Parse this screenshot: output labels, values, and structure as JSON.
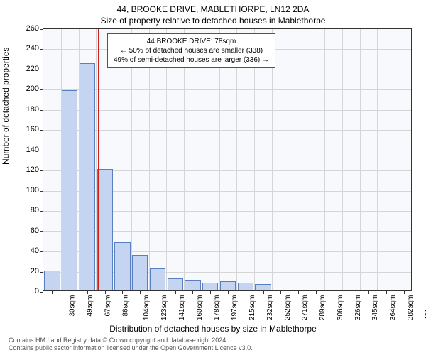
{
  "chart": {
    "type": "bar",
    "title_main": "44, BROOKE DRIVE, MABLETHORPE, LN12 2DA",
    "title_sub": "Size of property relative to detached houses in Mablethorpe",
    "title_fontsize": 12,
    "y_label": "Number of detached properties",
    "x_label": "Distribution of detached houses by size in Mablethorpe",
    "label_fontsize": 12,
    "ylim": [
      0,
      260
    ],
    "ytick_step": 20,
    "yticks": [
      0,
      20,
      40,
      60,
      80,
      100,
      120,
      140,
      160,
      180,
      200,
      220,
      240,
      260
    ],
    "x_categories": [
      "30sqm",
      "49sqm",
      "67sqm",
      "86sqm",
      "104sqm",
      "123sqm",
      "141sqm",
      "160sqm",
      "178sqm",
      "197sqm",
      "215sqm",
      "232sqm",
      "252sqm",
      "271sqm",
      "289sqm",
      "306sqm",
      "326sqm",
      "345sqm",
      "364sqm",
      "382sqm",
      "401sqm"
    ],
    "values": [
      20,
      198,
      225,
      120,
      48,
      35,
      22,
      12,
      10,
      8,
      9,
      8,
      6,
      0,
      0,
      0,
      0,
      0,
      0,
      0,
      0
    ],
    "bar_color": "#c5d4f0",
    "bar_border_color": "#5a7fc0",
    "background_color": "#ffffff",
    "plot_background_color": "#f7f9fc",
    "grid_color": "#d5d5d5",
    "tick_fontsize": 11,
    "reference_line": {
      "position_category": 2.6,
      "color": "#cc2020",
      "width": 2
    },
    "annotation": {
      "line1": "44 BROOKE DRIVE: 78sqm",
      "line2": "← 50% of detached houses are smaller (338)",
      "line3": "49% of semi-detached houses are larger (336) →",
      "border_color": "#cc2020",
      "background_color": "#ffffff",
      "fontsize": 10
    },
    "footer": {
      "line1": "Contains HM Land Registry data © Crown copyright and database right 2024.",
      "line2": "Contains public sector information licensed under the Open Government Licence v3.0.",
      "color": "#555555",
      "fontsize": 9
    }
  }
}
